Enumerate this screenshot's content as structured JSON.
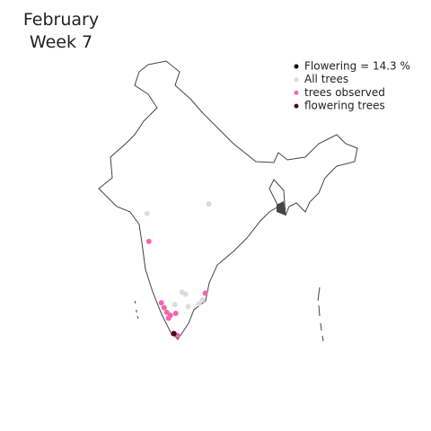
{
  "chart_data": {
    "type": "scatter",
    "title": "February",
    "subtitle": "Week 7",
    "annotation": "Flowering = 14.3 %",
    "xlim": [
      68,
      97.4
    ],
    "ylim": [
      8,
      37
    ],
    "series": [
      {
        "name": "All trees",
        "color": "#dcdcdc",
        "x": [
          73.7,
          80.6,
          77.6,
          78.3,
          79.5,
          79.9,
          76.8,
          78.0
        ],
        "values": [
          21.3,
          22.3,
          13.1,
          11.6,
          11.9,
          12.3,
          11.8,
          12.9
        ]
      },
      {
        "name": "trees observed",
        "color": "#f564ae",
        "x": [
          73.9,
          80.2,
          75.3,
          75.6,
          75.9,
          76.3,
          76.9,
          76.1,
          76.6,
          77.1
        ],
        "values": [
          18.4,
          13.0,
          12.0,
          11.5,
          11.0,
          10.7,
          10.9,
          10.4,
          8.8,
          8.6
        ]
      },
      {
        "name": "flowering trees",
        "color": "#4a0020",
        "x": [
          76.7
        ],
        "values": [
          8.8
        ]
      }
    ]
  }
}
